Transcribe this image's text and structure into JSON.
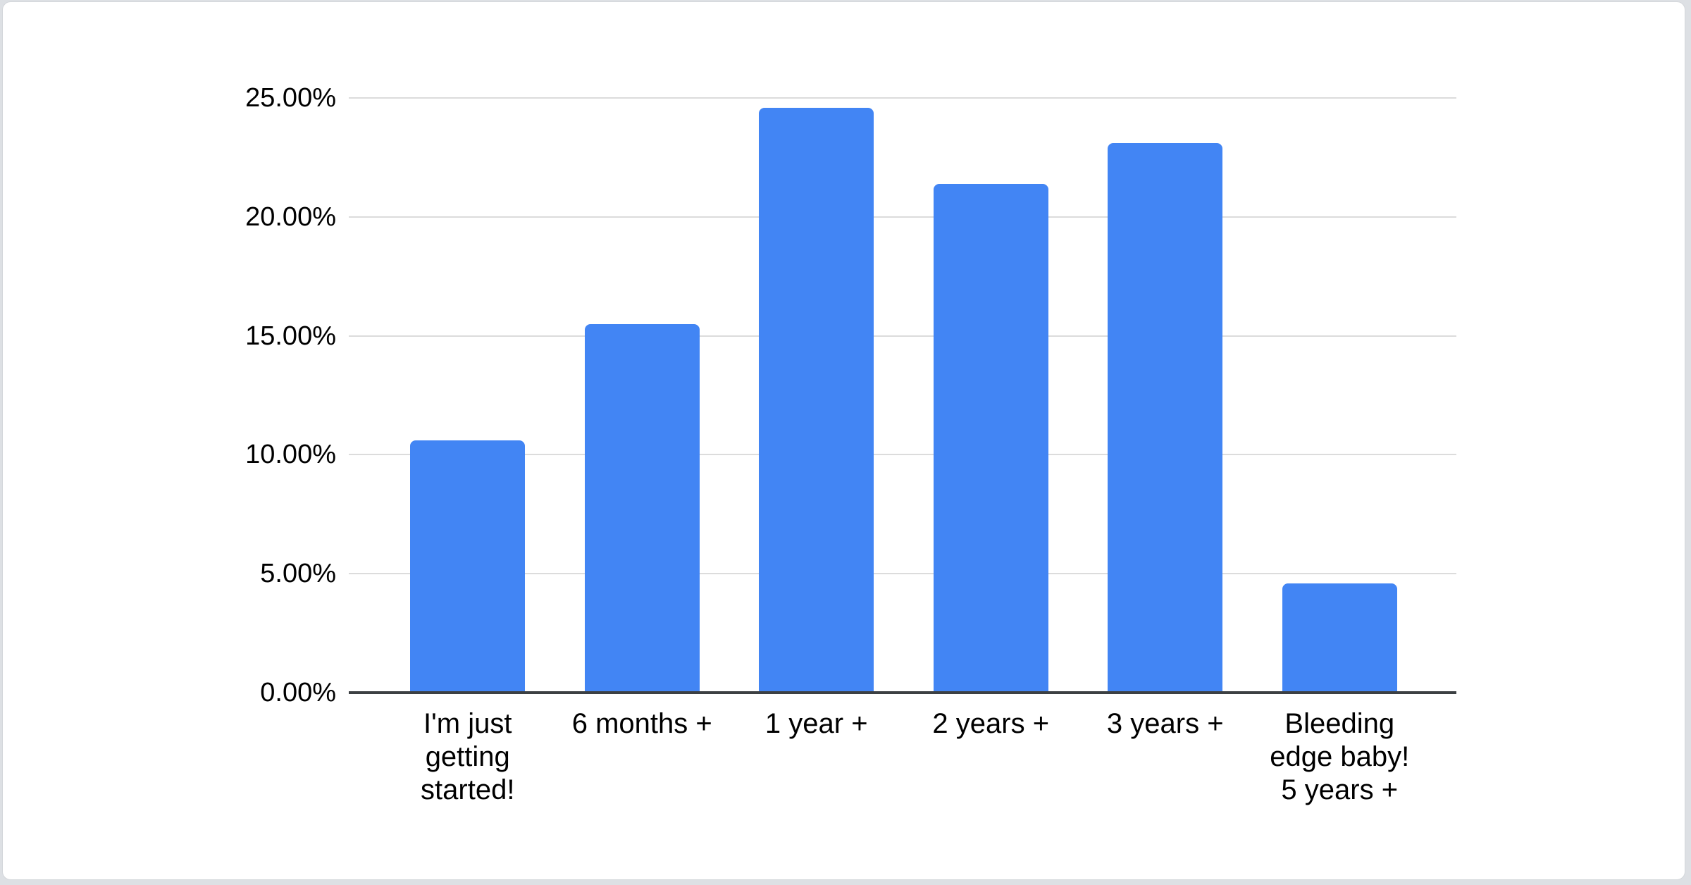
{
  "page": {
    "background_color": "#dde0e4",
    "card_background_color": "#ffffff"
  },
  "chart_data": {
    "type": "bar",
    "title": "",
    "xlabel": "",
    "ylabel": "",
    "categories": [
      "I'm just\ngetting\nstarted!",
      "6 months +",
      "1 year +",
      "2 years +",
      "3 years +",
      "Bleeding\nedge baby!\n5 years +"
    ],
    "values": [
      10.6,
      15.5,
      24.6,
      21.4,
      23.1,
      4.6
    ],
    "value_unit": "percent",
    "ylim": [
      0,
      25
    ],
    "ytick_step": 5,
    "yticks": [
      {
        "value": 0,
        "label": "0.00%"
      },
      {
        "value": 5,
        "label": "5.00%"
      },
      {
        "value": 10,
        "label": "10.00%"
      },
      {
        "value": 15,
        "label": "15.00%"
      },
      {
        "value": 20,
        "label": "20.00%"
      },
      {
        "value": 25,
        "label": "25.00%"
      }
    ],
    "grid": true,
    "legend": "none",
    "bar_color": "#4285f4",
    "axis_line_color": "#3c4043",
    "gridline_color": "#dcdcdc",
    "label_color": "#000000"
  }
}
